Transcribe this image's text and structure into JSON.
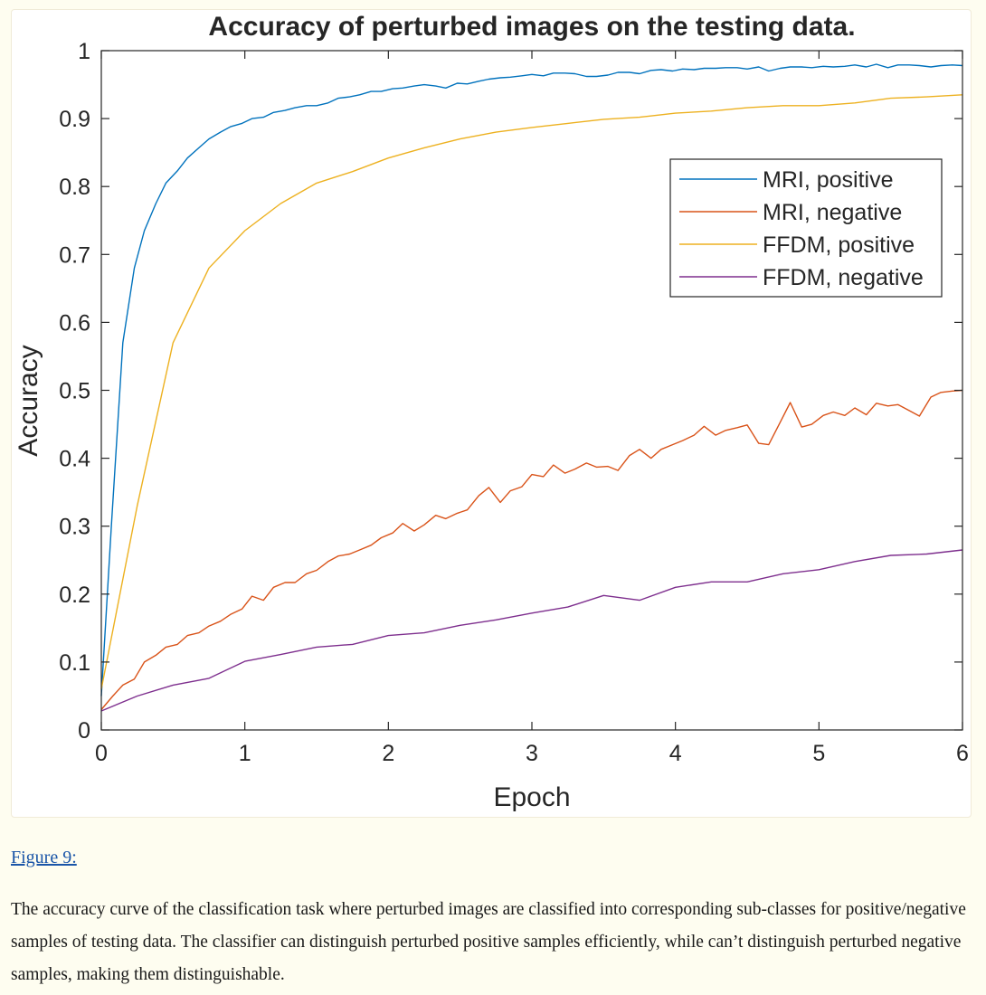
{
  "figure": {
    "link_text": "Figure 9:",
    "caption": "The accuracy curve of the classification task where perturbed images are classified into corresponding sub-classes for positive/negative samples of testing data. The classifier can distinguish perturbed positive samples efficiently, while can’t distinguish perturbed negative samples, making them distinguishable."
  },
  "chart_data": {
    "type": "line",
    "title": "Accuracy of perturbed images on the testing data.",
    "xlabel": "Epoch",
    "ylabel": "Accuracy",
    "xlim": [
      0,
      6
    ],
    "ylim": [
      0,
      1
    ],
    "xticks": [
      0,
      1,
      2,
      3,
      4,
      5,
      6
    ],
    "yticks": [
      0,
      0.1,
      0.2,
      0.3,
      0.4,
      0.5,
      0.6,
      0.7,
      0.8,
      0.9,
      1
    ],
    "grid": false,
    "legend": "top-right",
    "series": [
      {
        "name": "MRI, positive",
        "color": "#0072bd",
        "x": [
          0,
          0.07,
          0.15,
          0.23,
          0.3,
          0.38,
          0.45,
          0.53,
          0.6,
          0.68,
          0.75,
          0.83,
          0.9,
          0.98,
          1.05,
          1.13,
          1.2,
          1.28,
          1.35,
          1.43,
          1.5,
          1.58,
          1.65,
          1.73,
          1.8,
          1.88,
          1.95,
          2.03,
          2.1,
          2.18,
          2.25,
          2.33,
          2.4,
          2.48,
          2.55,
          2.63,
          2.7,
          2.78,
          2.85,
          2.93,
          3.0,
          3.08,
          3.15,
          3.23,
          3.3,
          3.38,
          3.45,
          3.53,
          3.6,
          3.68,
          3.75,
          3.83,
          3.9,
          3.98,
          4.05,
          4.13,
          4.2,
          4.28,
          4.35,
          4.43,
          4.5,
          4.58,
          4.65,
          4.73,
          4.8,
          4.88,
          4.95,
          5.03,
          5.1,
          5.18,
          5.25,
          5.33,
          5.4,
          5.48,
          5.55,
          5.63,
          5.7,
          5.78,
          5.85,
          5.93,
          6.0
        ],
        "y": [
          0.05,
          0.3,
          0.57,
          0.68,
          0.735,
          0.775,
          0.805,
          0.823,
          0.842,
          0.857,
          0.87,
          0.88,
          0.888,
          0.893,
          0.9,
          0.902,
          0.909,
          0.912,
          0.916,
          0.919,
          0.919,
          0.923,
          0.93,
          0.932,
          0.935,
          0.94,
          0.94,
          0.944,
          0.945,
          0.948,
          0.95,
          0.948,
          0.945,
          0.952,
          0.951,
          0.955,
          0.958,
          0.96,
          0.961,
          0.963,
          0.965,
          0.963,
          0.967,
          0.967,
          0.966,
          0.962,
          0.962,
          0.964,
          0.968,
          0.968,
          0.966,
          0.971,
          0.972,
          0.97,
          0.973,
          0.972,
          0.974,
          0.974,
          0.975,
          0.975,
          0.973,
          0.976,
          0.97,
          0.974,
          0.976,
          0.976,
          0.975,
          0.977,
          0.976,
          0.977,
          0.979,
          0.976,
          0.98,
          0.975,
          0.979,
          0.979,
          0.978,
          0.976,
          0.978,
          0.979,
          0.978
        ]
      },
      {
        "name": "MRI, negative",
        "color": "#d95319",
        "x": [
          0,
          0.08,
          0.15,
          0.23,
          0.3,
          0.38,
          0.45,
          0.53,
          0.6,
          0.68,
          0.75,
          0.83,
          0.9,
          0.98,
          1.05,
          1.13,
          1.2,
          1.28,
          1.35,
          1.43,
          1.5,
          1.58,
          1.65,
          1.73,
          1.8,
          1.88,
          1.95,
          2.03,
          2.1,
          2.18,
          2.25,
          2.33,
          2.4,
          2.48,
          2.55,
          2.63,
          2.7,
          2.78,
          2.85,
          2.93,
          3.0,
          3.08,
          3.15,
          3.23,
          3.3,
          3.38,
          3.45,
          3.53,
          3.6,
          3.68,
          3.75,
          3.83,
          3.9,
          3.98,
          4.05,
          4.13,
          4.2,
          4.28,
          4.35,
          4.43,
          4.5,
          4.58,
          4.65,
          4.73,
          4.8,
          4.88,
          4.95,
          5.03,
          5.1,
          5.18,
          5.25,
          5.33,
          5.4,
          5.48,
          5.55,
          5.63,
          5.7,
          5.78,
          5.85,
          5.93,
          6.0
        ],
        "y": [
          0.03,
          0.05,
          0.066,
          0.075,
          0.1,
          0.11,
          0.122,
          0.126,
          0.139,
          0.143,
          0.153,
          0.16,
          0.17,
          0.178,
          0.197,
          0.191,
          0.21,
          0.217,
          0.217,
          0.23,
          0.235,
          0.248,
          0.256,
          0.259,
          0.265,
          0.272,
          0.283,
          0.29,
          0.304,
          0.293,
          0.302,
          0.316,
          0.311,
          0.319,
          0.324,
          0.345,
          0.357,
          0.335,
          0.352,
          0.358,
          0.376,
          0.373,
          0.39,
          0.378,
          0.384,
          0.393,
          0.387,
          0.388,
          0.382,
          0.404,
          0.413,
          0.4,
          0.413,
          0.42,
          0.426,
          0.434,
          0.447,
          0.434,
          0.441,
          0.445,
          0.449,
          0.422,
          0.42,
          0.453,
          0.482,
          0.446,
          0.45,
          0.463,
          0.468,
          0.463,
          0.474,
          0.464,
          0.481,
          0.477,
          0.479,
          0.47,
          0.462,
          0.49,
          0.497,
          0.499,
          0.5
        ]
      },
      {
        "name": "FFDM, positive",
        "color": "#edb120",
        "x": [
          0,
          0.25,
          0.5,
          0.75,
          1.0,
          1.25,
          1.5,
          1.75,
          2.0,
          2.25,
          2.5,
          2.75,
          3.0,
          3.25,
          3.5,
          3.75,
          4.0,
          4.25,
          4.5,
          4.75,
          5.0,
          5.25,
          5.5,
          5.75,
          6.0
        ],
        "y": [
          0.06,
          0.33,
          0.57,
          0.68,
          0.735,
          0.775,
          0.805,
          0.822,
          0.842,
          0.857,
          0.87,
          0.88,
          0.887,
          0.893,
          0.899,
          0.902,
          0.908,
          0.911,
          0.916,
          0.919,
          0.919,
          0.923,
          0.93,
          0.932,
          0.935
        ]
      },
      {
        "name": "FFDM, negative",
        "color": "#7e2f8e",
        "x": [
          0,
          0.25,
          0.5,
          0.75,
          1.0,
          1.25,
          1.5,
          1.75,
          2.0,
          2.25,
          2.5,
          2.75,
          3.0,
          3.25,
          3.5,
          3.75,
          4.0,
          4.25,
          4.5,
          4.75,
          5.0,
          5.25,
          5.5,
          5.75,
          6.0
        ],
        "y": [
          0.028,
          0.05,
          0.066,
          0.076,
          0.101,
          0.111,
          0.122,
          0.126,
          0.139,
          0.143,
          0.154,
          0.162,
          0.172,
          0.181,
          0.198,
          0.191,
          0.21,
          0.218,
          0.218,
          0.23,
          0.236,
          0.248,
          0.257,
          0.259,
          0.265
        ]
      }
    ]
  }
}
